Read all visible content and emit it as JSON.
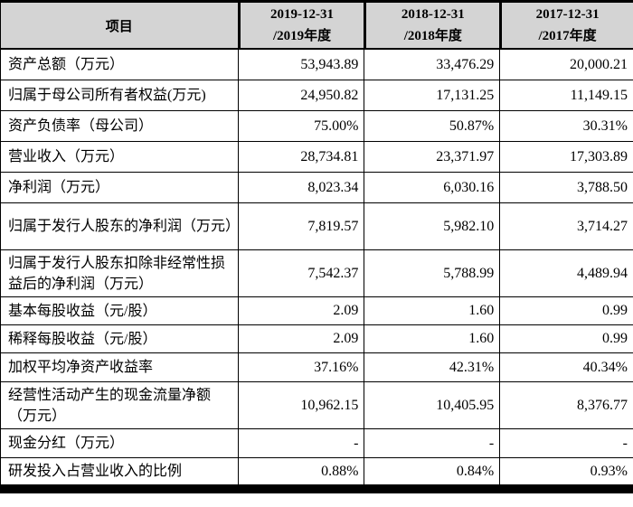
{
  "table": {
    "header": {
      "item_label": "项目",
      "periods": [
        {
          "line1": "2019-12-31",
          "line2": "/2019年度"
        },
        {
          "line1": "2018-12-31",
          "line2": "/2018年度"
        },
        {
          "line1": "2017-12-31",
          "line2": "/2017年度"
        }
      ]
    },
    "rows": [
      {
        "label": "资产总额（万元）",
        "values": [
          "53,943.89",
          "33,476.29",
          "20,000.21"
        ]
      },
      {
        "label": "归属于母公司所有者权益(万元)",
        "values": [
          "24,950.82",
          "17,131.25",
          "11,149.15"
        ]
      },
      {
        "label": "资产负债率（母公司）",
        "values": [
          "75.00%",
          "50.87%",
          "30.31%"
        ]
      },
      {
        "label": "营业收入（万元）",
        "values": [
          "28,734.81",
          "23,371.97",
          "17,303.89"
        ]
      },
      {
        "label": "净利润（万元）",
        "values": [
          "8,023.34",
          "6,030.16",
          "3,788.50"
        ]
      },
      {
        "label": "归属于发行人股东的净利润（万元）",
        "values": [
          "7,819.57",
          "5,982.10",
          "3,714.27"
        ]
      },
      {
        "label": "归属于发行人股东扣除非经常性损益后的净利润（万元）",
        "values": [
          "7,542.37",
          "5,788.99",
          "4,489.94"
        ]
      },
      {
        "label": "基本每股收益（元/股）",
        "values": [
          "2.09",
          "1.60",
          "0.99"
        ]
      },
      {
        "label": "稀释每股收益（元/股）",
        "values": [
          "2.09",
          "1.60",
          "0.99"
        ]
      },
      {
        "label": "加权平均净资产收益率",
        "values": [
          "37.16%",
          "42.31%",
          "40.34%"
        ]
      },
      {
        "label": "经营性活动产生的现金流量净额（万元）",
        "values": [
          "10,962.15",
          "10,405.95",
          "8,376.77"
        ]
      },
      {
        "label": "现金分红（万元）",
        "values": [
          "-",
          "-",
          "-"
        ]
      },
      {
        "label": "研发投入占营业收入的比例",
        "values": [
          "0.88%",
          "0.84%",
          "0.93%"
        ]
      }
    ]
  },
  "colors": {
    "header_bg": "#d4d4d4",
    "border": "#000000",
    "bottom_bar": "#000000"
  }
}
